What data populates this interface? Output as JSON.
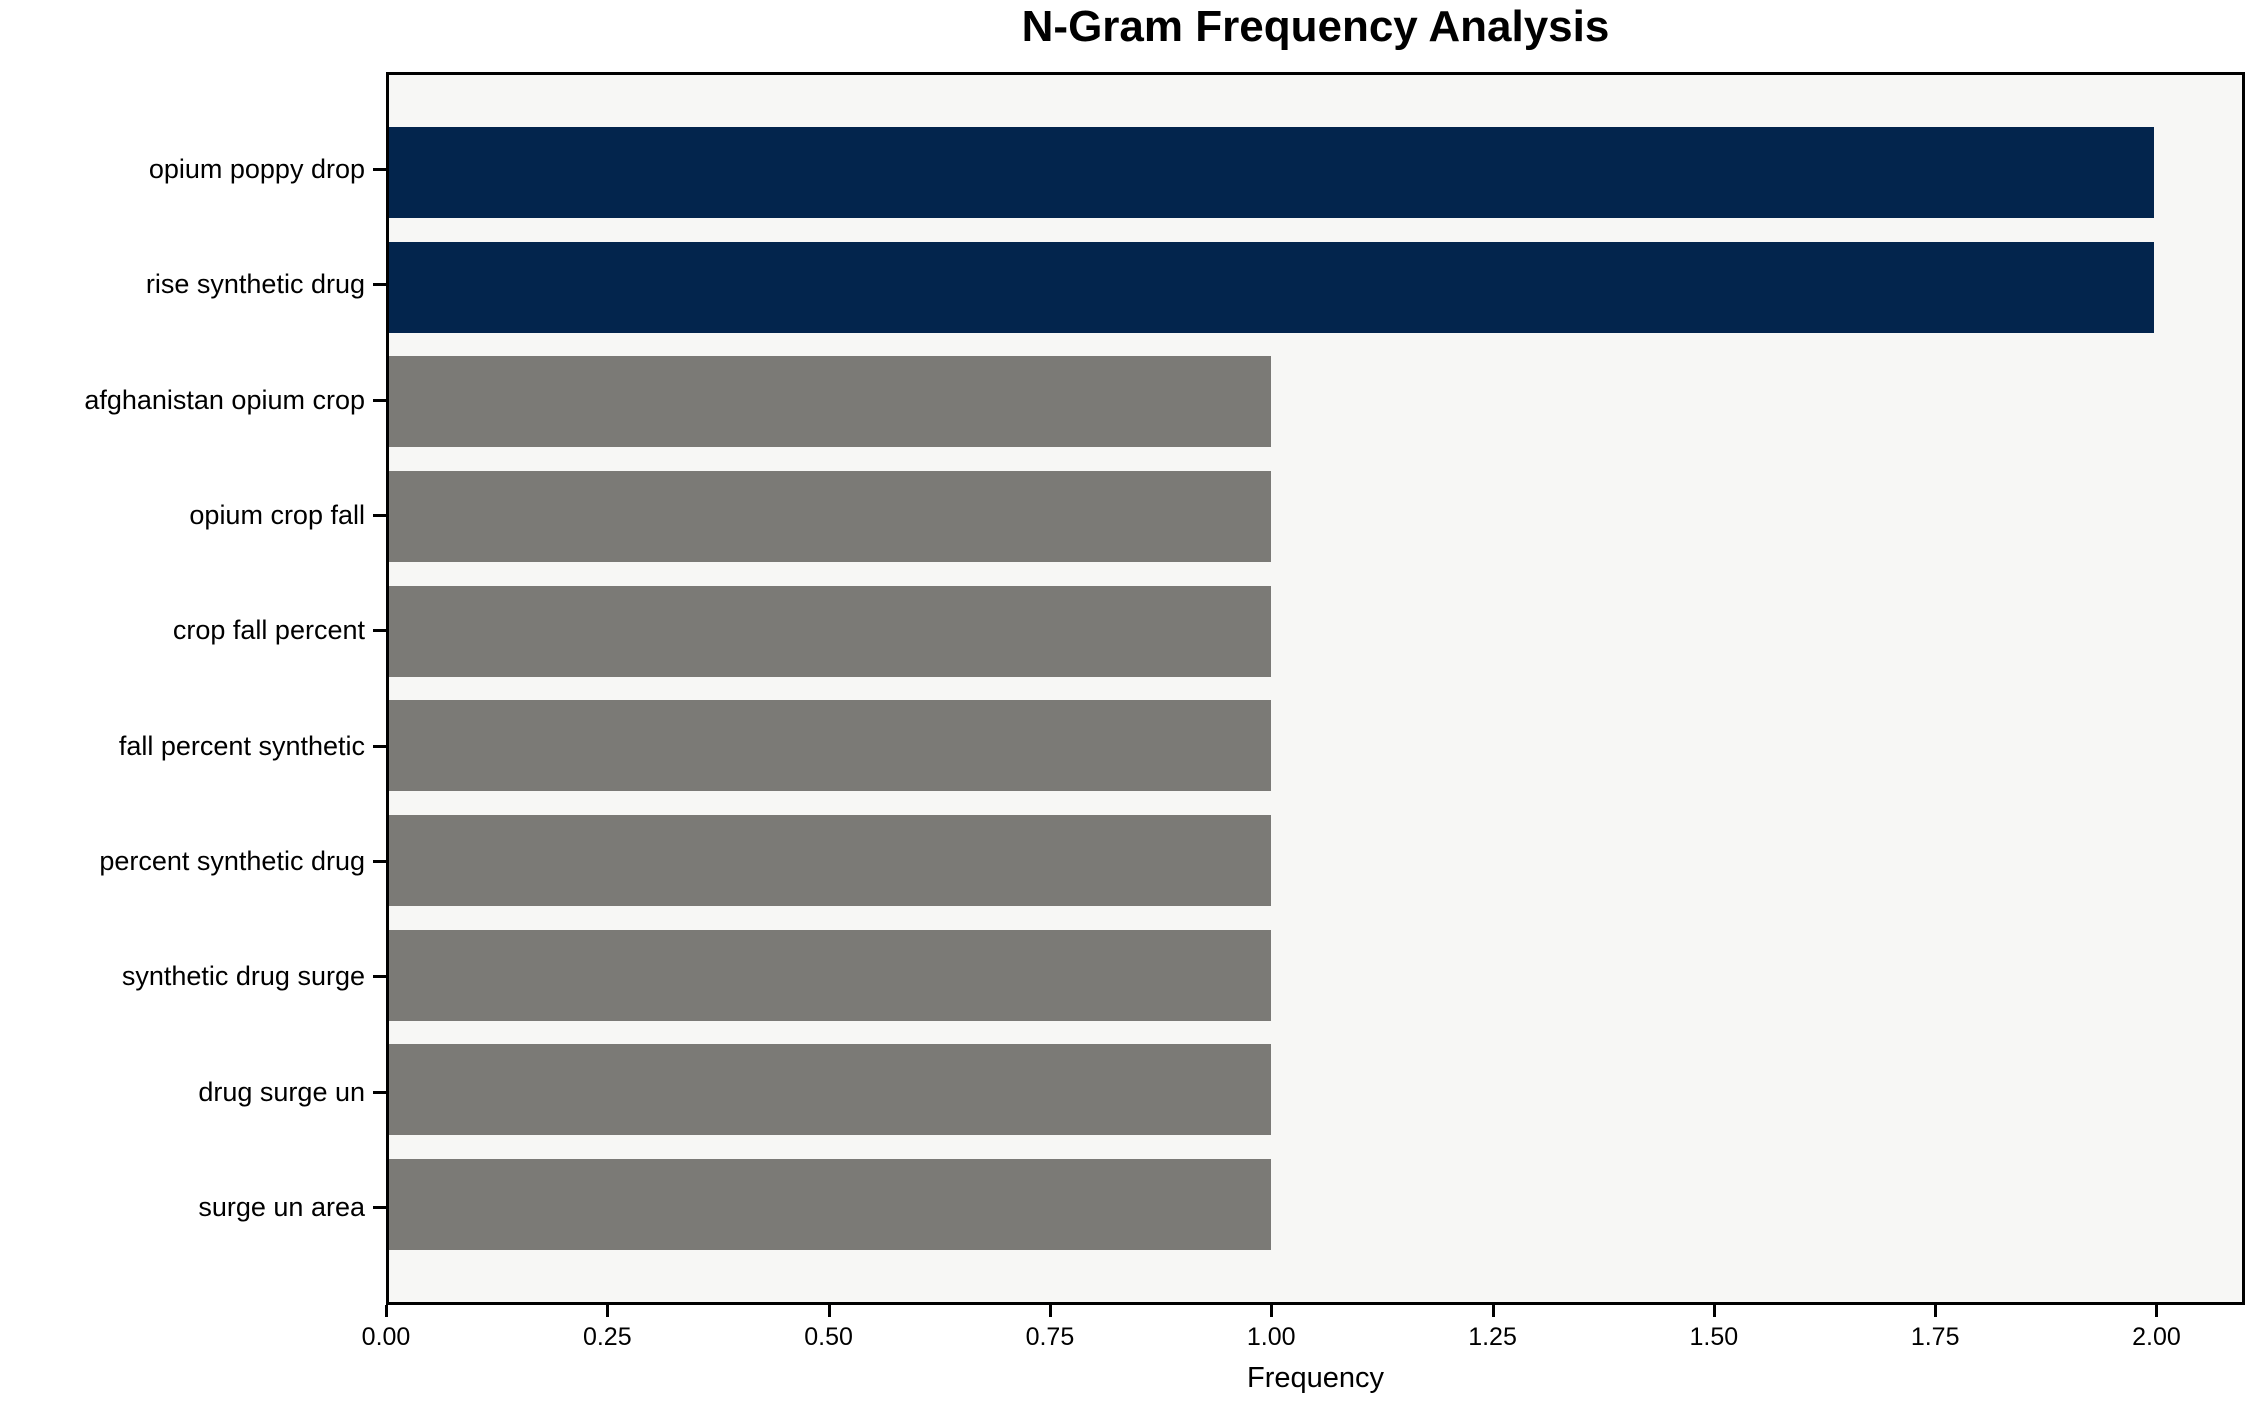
{
  "chart_data": {
    "type": "bar",
    "orientation": "horizontal",
    "title": "N-Gram Frequency Analysis",
    "xlabel": "Frequency",
    "ylabel": "",
    "categories": [
      "opium poppy drop",
      "rise synthetic drug",
      "afghanistan opium crop",
      "opium crop fall",
      "crop fall percent",
      "fall percent synthetic",
      "percent synthetic drug",
      "synthetic drug surge",
      "drug surge un",
      "surge un area"
    ],
    "values": [
      2,
      2,
      1,
      1,
      1,
      1,
      1,
      1,
      1,
      1
    ],
    "bar_colors": [
      "#03254d",
      "#03254d",
      "#7b7a76",
      "#7b7a76",
      "#7b7a76",
      "#7b7a76",
      "#7b7a76",
      "#7b7a76",
      "#7b7a76",
      "#7b7a76"
    ],
    "xlim": [
      0,
      2.1
    ],
    "x_tick_values": [
      0,
      0.25,
      0.5,
      0.75,
      1.0,
      1.25,
      1.5,
      1.75,
      2.0
    ],
    "x_tick_labels": [
      "0.00",
      "0.25",
      "0.50",
      "0.75",
      "1.00",
      "1.25",
      "1.50",
      "1.75",
      "2.00"
    ],
    "grid": false,
    "legend": null,
    "colors": {
      "highlight": "#03254d",
      "normal": "#7b7a76",
      "plot_background": "#f7f7f5",
      "spine": "#000000",
      "text": "#000000"
    }
  }
}
